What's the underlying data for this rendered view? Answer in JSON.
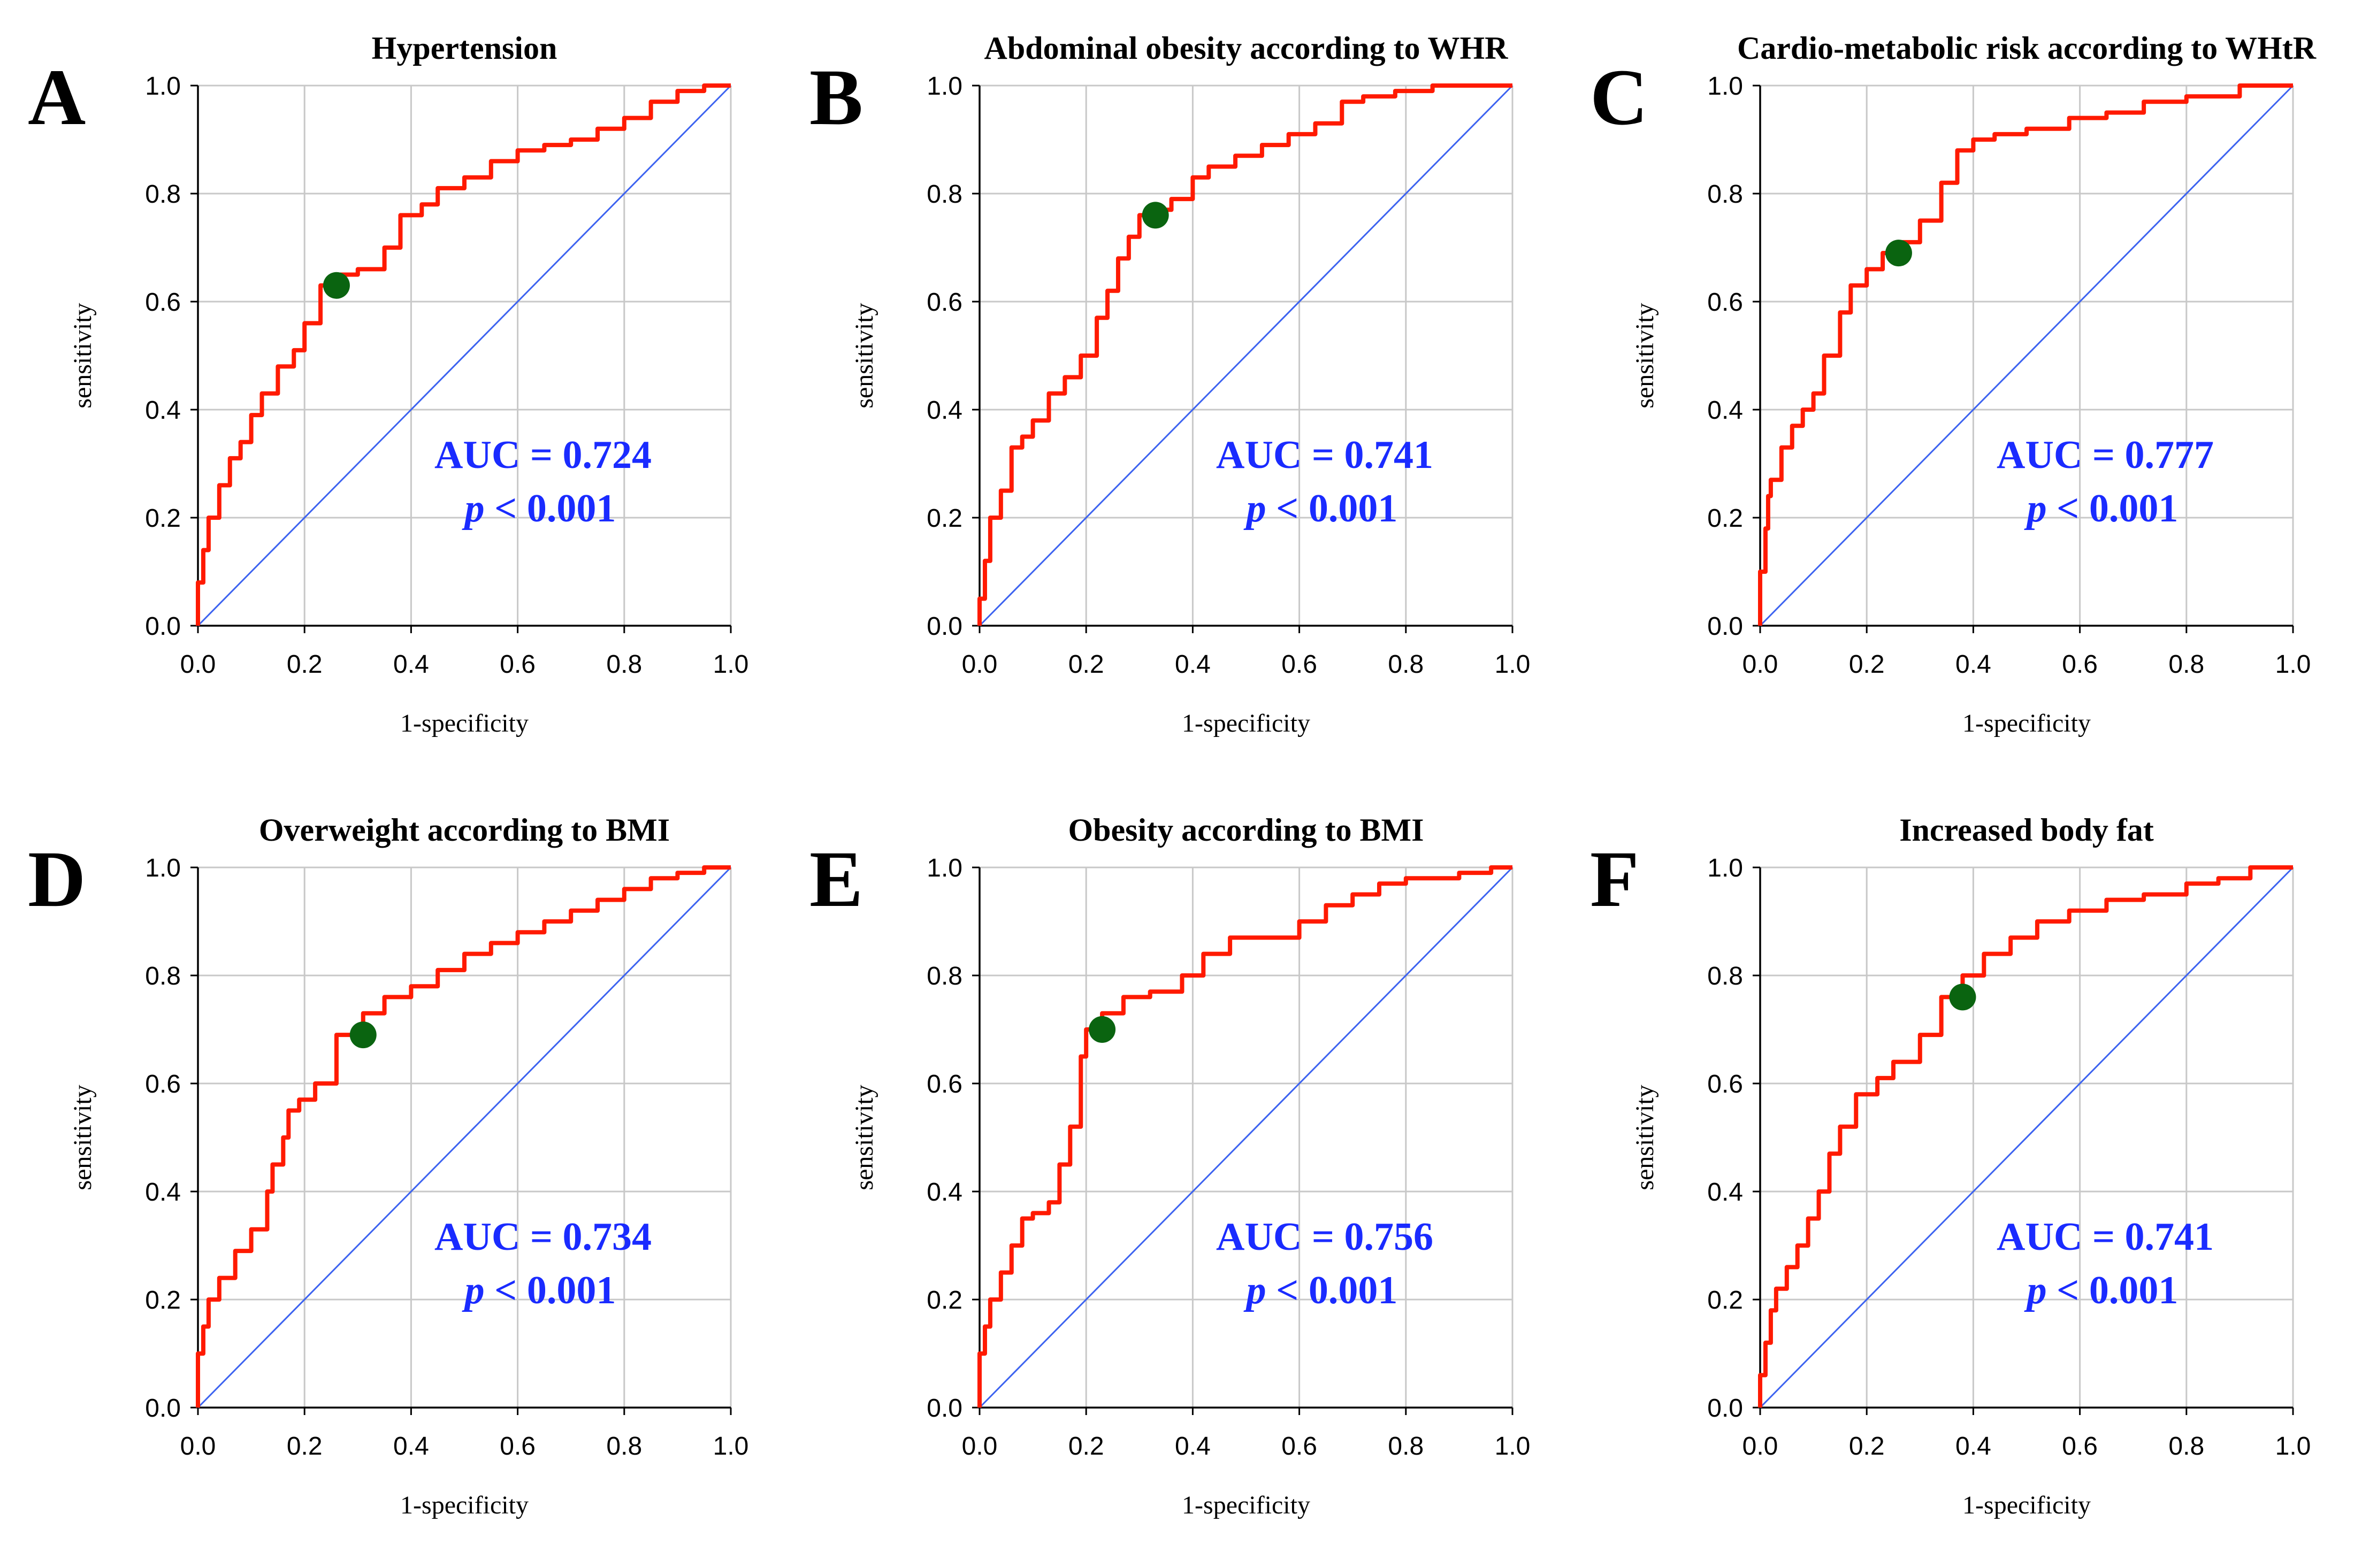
{
  "chart_data": [
    {
      "type": "line",
      "panel_letter": "A",
      "title": "Hypertension",
      "xlabel": "1-specificity",
      "ylabel": "sensitivity",
      "xlim": [
        0,
        1
      ],
      "ylim": [
        0,
        1
      ],
      "xticks": [
        "0.0",
        "0.2",
        "0.4",
        "0.6",
        "0.8",
        "1.0"
      ],
      "yticks": [
        "0.0",
        "0.2",
        "0.4",
        "0.6",
        "0.8",
        "1.0"
      ],
      "auc_text": "AUC = 0.724",
      "p_label": "p",
      "p_text": "< 0.001",
      "cutoff_point": {
        "x": 0.26,
        "y": 0.63
      },
      "roc": [
        [
          0,
          0
        ],
        [
          0.01,
          0.08
        ],
        [
          0.02,
          0.14
        ],
        [
          0.04,
          0.2
        ],
        [
          0.06,
          0.26
        ],
        [
          0.08,
          0.31
        ],
        [
          0.1,
          0.34
        ],
        [
          0.12,
          0.39
        ],
        [
          0.15,
          0.43
        ],
        [
          0.18,
          0.48
        ],
        [
          0.2,
          0.51
        ],
        [
          0.23,
          0.56
        ],
        [
          0.26,
          0.63
        ],
        [
          0.3,
          0.65
        ],
        [
          0.35,
          0.66
        ],
        [
          0.38,
          0.7
        ],
        [
          0.42,
          0.76
        ],
        [
          0.45,
          0.78
        ],
        [
          0.5,
          0.81
        ],
        [
          0.55,
          0.83
        ],
        [
          0.6,
          0.86
        ],
        [
          0.65,
          0.88
        ],
        [
          0.7,
          0.89
        ],
        [
          0.75,
          0.9
        ],
        [
          0.8,
          0.92
        ],
        [
          0.85,
          0.94
        ],
        [
          0.9,
          0.97
        ],
        [
          0.95,
          0.99
        ],
        [
          1,
          1
        ]
      ],
      "reference_line": [
        [
          0,
          0
        ],
        [
          1,
          1
        ]
      ]
    },
    {
      "type": "line",
      "panel_letter": "B",
      "title": "Abdominal obesity according to WHR",
      "xlabel": "1-specificity",
      "ylabel": "sensitivity",
      "xlim": [
        0,
        1
      ],
      "ylim": [
        0,
        1
      ],
      "xticks": [
        "0.0",
        "0.2",
        "0.4",
        "0.6",
        "0.8",
        "1.0"
      ],
      "yticks": [
        "0.0",
        "0.2",
        "0.4",
        "0.6",
        "0.8",
        "1.0"
      ],
      "auc_text": "AUC = 0.741",
      "p_label": "p",
      "p_text": "< 0.001",
      "cutoff_point": {
        "x": 0.33,
        "y": 0.76
      },
      "roc": [
        [
          0,
          0
        ],
        [
          0.01,
          0.05
        ],
        [
          0.02,
          0.12
        ],
        [
          0.04,
          0.2
        ],
        [
          0.06,
          0.25
        ],
        [
          0.08,
          0.33
        ],
        [
          0.1,
          0.35
        ],
        [
          0.13,
          0.38
        ],
        [
          0.16,
          0.43
        ],
        [
          0.19,
          0.46
        ],
        [
          0.22,
          0.5
        ],
        [
          0.24,
          0.57
        ],
        [
          0.26,
          0.62
        ],
        [
          0.28,
          0.68
        ],
        [
          0.3,
          0.72
        ],
        [
          0.33,
          0.76
        ],
        [
          0.36,
          0.77
        ],
        [
          0.4,
          0.79
        ],
        [
          0.43,
          0.83
        ],
        [
          0.48,
          0.85
        ],
        [
          0.53,
          0.87
        ],
        [
          0.58,
          0.89
        ],
        [
          0.63,
          0.91
        ],
        [
          0.68,
          0.93
        ],
        [
          0.72,
          0.97
        ],
        [
          0.78,
          0.98
        ],
        [
          0.85,
          0.99
        ],
        [
          0.92,
          1
        ],
        [
          1,
          1
        ]
      ],
      "reference_line": [
        [
          0,
          0
        ],
        [
          1,
          1
        ]
      ]
    },
    {
      "type": "line",
      "panel_letter": "C",
      "title": "Cardio-metabolic risk according to WHtR",
      "xlabel": "1-specificity",
      "ylabel": "sensitivity",
      "xlim": [
        0,
        1
      ],
      "ylim": [
        0,
        1
      ],
      "xticks": [
        "0.0",
        "0.2",
        "0.4",
        "0.6",
        "0.8",
        "1.0"
      ],
      "yticks": [
        "0.0",
        "0.2",
        "0.4",
        "0.6",
        "0.8",
        "1.0"
      ],
      "auc_text": "AUC = 0.777",
      "p_label": "p",
      "p_text": "< 0.001",
      "cutoff_point": {
        "x": 0.26,
        "y": 0.69
      },
      "roc": [
        [
          0,
          0
        ],
        [
          0.01,
          0.1
        ],
        [
          0.015,
          0.18
        ],
        [
          0.02,
          0.24
        ],
        [
          0.04,
          0.27
        ],
        [
          0.06,
          0.33
        ],
        [
          0.08,
          0.37
        ],
        [
          0.1,
          0.4
        ],
        [
          0.12,
          0.43
        ],
        [
          0.15,
          0.5
        ],
        [
          0.17,
          0.58
        ],
        [
          0.2,
          0.63
        ],
        [
          0.23,
          0.66
        ],
        [
          0.26,
          0.69
        ],
        [
          0.3,
          0.71
        ],
        [
          0.34,
          0.75
        ],
        [
          0.37,
          0.82
        ],
        [
          0.4,
          0.88
        ],
        [
          0.44,
          0.9
        ],
        [
          0.5,
          0.91
        ],
        [
          0.58,
          0.92
        ],
        [
          0.65,
          0.94
        ],
        [
          0.72,
          0.95
        ],
        [
          0.8,
          0.97
        ],
        [
          0.9,
          0.98
        ],
        [
          1,
          1
        ]
      ],
      "reference_line": [
        [
          0,
          0
        ],
        [
          1,
          1
        ]
      ]
    },
    {
      "type": "line",
      "panel_letter": "D",
      "title": "Overweight according to BMI",
      "xlabel": "1-specificity",
      "ylabel": "sensitivity",
      "xlim": [
        0,
        1
      ],
      "ylim": [
        0,
        1
      ],
      "xticks": [
        "0.0",
        "0.2",
        "0.4",
        "0.6",
        "0.8",
        "1.0"
      ],
      "yticks": [
        "0.0",
        "0.2",
        "0.4",
        "0.6",
        "0.8",
        "1.0"
      ],
      "auc_text": "AUC = 0.734",
      "p_label": "p",
      "p_text": "< 0.001",
      "cutoff_point": {
        "x": 0.31,
        "y": 0.69
      },
      "roc": [
        [
          0,
          0
        ],
        [
          0.01,
          0.1
        ],
        [
          0.02,
          0.15
        ],
        [
          0.04,
          0.2
        ],
        [
          0.07,
          0.24
        ],
        [
          0.1,
          0.29
        ],
        [
          0.13,
          0.33
        ],
        [
          0.14,
          0.4
        ],
        [
          0.16,
          0.45
        ],
        [
          0.17,
          0.5
        ],
        [
          0.19,
          0.55
        ],
        [
          0.22,
          0.57
        ],
        [
          0.26,
          0.6
        ],
        [
          0.31,
          0.69
        ],
        [
          0.35,
          0.73
        ],
        [
          0.4,
          0.76
        ],
        [
          0.45,
          0.78
        ],
        [
          0.5,
          0.81
        ],
        [
          0.55,
          0.84
        ],
        [
          0.6,
          0.86
        ],
        [
          0.65,
          0.88
        ],
        [
          0.7,
          0.9
        ],
        [
          0.75,
          0.92
        ],
        [
          0.8,
          0.94
        ],
        [
          0.85,
          0.96
        ],
        [
          0.9,
          0.98
        ],
        [
          0.95,
          0.99
        ],
        [
          1,
          1
        ]
      ],
      "reference_line": [
        [
          0,
          0
        ],
        [
          1,
          1
        ]
      ]
    },
    {
      "type": "line",
      "panel_letter": "E",
      "title": "Obesity according to BMI",
      "xlabel": "1-specificity",
      "ylabel": "sensitivity",
      "xlim": [
        0,
        1
      ],
      "ylim": [
        0,
        1
      ],
      "xticks": [
        "0.0",
        "0.2",
        "0.4",
        "0.6",
        "0.8",
        "1.0"
      ],
      "yticks": [
        "0.0",
        "0.2",
        "0.4",
        "0.6",
        "0.8",
        "1.0"
      ],
      "auc_text": "AUC = 0.756",
      "p_label": "p",
      "p_text": "< 0.001",
      "cutoff_point": {
        "x": 0.23,
        "y": 0.7
      },
      "roc": [
        [
          0,
          0
        ],
        [
          0.01,
          0.1
        ],
        [
          0.02,
          0.15
        ],
        [
          0.04,
          0.2
        ],
        [
          0.06,
          0.25
        ],
        [
          0.08,
          0.3
        ],
        [
          0.1,
          0.35
        ],
        [
          0.13,
          0.36
        ],
        [
          0.15,
          0.38
        ],
        [
          0.17,
          0.45
        ],
        [
          0.19,
          0.52
        ],
        [
          0.2,
          0.65
        ],
        [
          0.23,
          0.7
        ],
        [
          0.27,
          0.73
        ],
        [
          0.32,
          0.76
        ],
        [
          0.38,
          0.77
        ],
        [
          0.42,
          0.8
        ],
        [
          0.47,
          0.84
        ],
        [
          0.52,
          0.87
        ],
        [
          0.6,
          0.87
        ],
        [
          0.65,
          0.9
        ],
        [
          0.7,
          0.93
        ],
        [
          0.75,
          0.95
        ],
        [
          0.8,
          0.97
        ],
        [
          0.9,
          0.98
        ],
        [
          0.96,
          0.99
        ],
        [
          1,
          1
        ]
      ],
      "reference_line": [
        [
          0,
          0
        ],
        [
          1,
          1
        ]
      ]
    },
    {
      "type": "line",
      "panel_letter": "F",
      "title": "Increased body fat",
      "xlabel": "1-specificity",
      "ylabel": "sensitivity",
      "xlim": [
        0,
        1
      ],
      "ylim": [
        0,
        1
      ],
      "xticks": [
        "0.0",
        "0.2",
        "0.4",
        "0.6",
        "0.8",
        "1.0"
      ],
      "yticks": [
        "0.0",
        "0.2",
        "0.4",
        "0.6",
        "0.8",
        "1.0"
      ],
      "auc_text": "AUC = 0.741",
      "p_label": "p",
      "p_text": "< 0.001",
      "cutoff_point": {
        "x": 0.38,
        "y": 0.76
      },
      "roc": [
        [
          0,
          0
        ],
        [
          0.01,
          0.06
        ],
        [
          0.02,
          0.12
        ],
        [
          0.03,
          0.18
        ],
        [
          0.05,
          0.22
        ],
        [
          0.07,
          0.26
        ],
        [
          0.09,
          0.3
        ],
        [
          0.11,
          0.35
        ],
        [
          0.13,
          0.4
        ],
        [
          0.15,
          0.47
        ],
        [
          0.18,
          0.52
        ],
        [
          0.22,
          0.58
        ],
        [
          0.25,
          0.61
        ],
        [
          0.3,
          0.64
        ],
        [
          0.34,
          0.69
        ],
        [
          0.38,
          0.76
        ],
        [
          0.42,
          0.8
        ],
        [
          0.47,
          0.84
        ],
        [
          0.52,
          0.87
        ],
        [
          0.58,
          0.9
        ],
        [
          0.65,
          0.92
        ],
        [
          0.72,
          0.94
        ],
        [
          0.8,
          0.95
        ],
        [
          0.86,
          0.97
        ],
        [
          0.92,
          0.98
        ],
        [
          1,
          1
        ]
      ],
      "reference_line": [
        [
          0,
          0
        ],
        [
          1,
          1
        ]
      ]
    }
  ],
  "colors": {
    "roc_line": "#ff1a00",
    "reference_line": "#3d63f0",
    "cutoff_marker": "#0a6410",
    "annotation_text": "#1a2bff",
    "grid": "#c8c8c8",
    "axis": "#000000"
  }
}
